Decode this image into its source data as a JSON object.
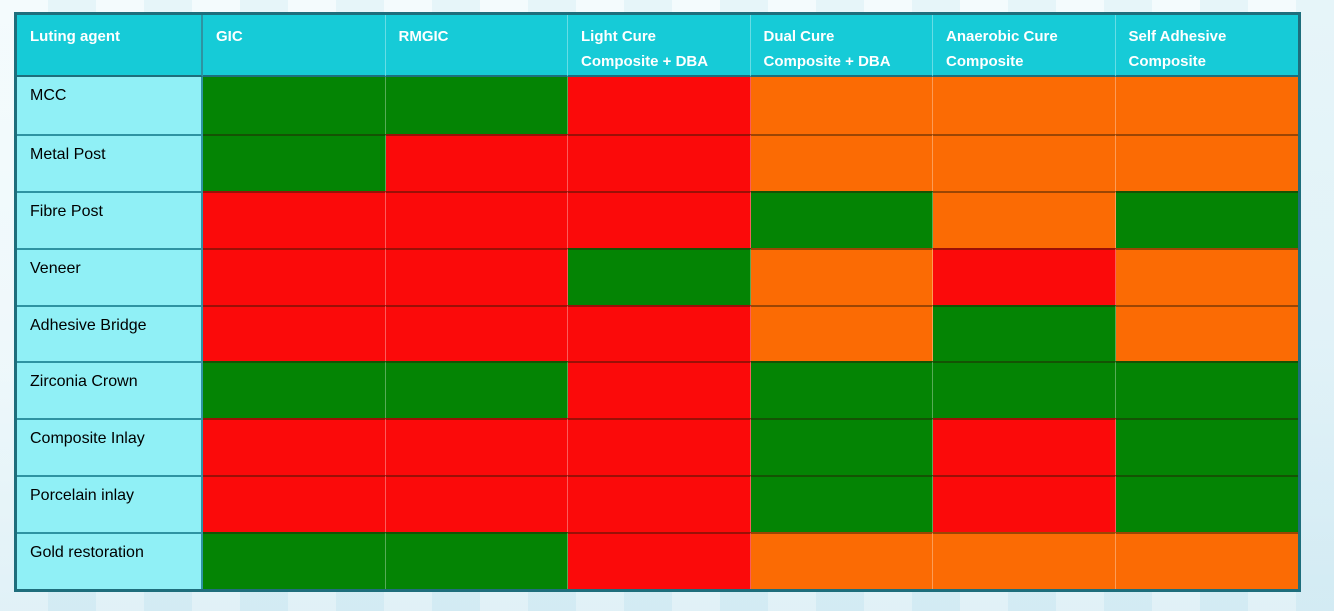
{
  "table": {
    "colors": {
      "green": "#048404",
      "red": "#fb0a0a",
      "orange": "#fb6b04",
      "header_bg": "#16cbd7",
      "label_bg": "#90f0f6",
      "outer_border": "#1e6e7c",
      "label_border": "#2e93a2",
      "header_text": "#ffffff",
      "label_text": "#000000"
    },
    "columns": [
      {
        "id": "luting-agent",
        "lines": [
          "Luting agent"
        ]
      },
      {
        "id": "gic",
        "lines": [
          "GIC"
        ]
      },
      {
        "id": "rmgic",
        "lines": [
          "RMGIC"
        ]
      },
      {
        "id": "light-cure-composite-dba",
        "lines": [
          "Light Cure",
          "Composite + DBA"
        ]
      },
      {
        "id": "dual-cure-composite-dba",
        "lines": [
          "Dual Cure",
          "Composite + DBA"
        ]
      },
      {
        "id": "anaerobic-cure-composite",
        "lines": [
          "Anaerobic Cure",
          "Composite"
        ]
      },
      {
        "id": "self-adhesive-composite",
        "lines": [
          "Self Adhesive",
          "Composite"
        ]
      }
    ],
    "rows": [
      {
        "id": "mcc",
        "label": "MCC",
        "cells": [
          "green",
          "green",
          "red",
          "orange",
          "orange",
          "orange"
        ]
      },
      {
        "id": "metal-post",
        "label": "Metal Post",
        "cells": [
          "green",
          "red",
          "red",
          "orange",
          "orange",
          "orange"
        ]
      },
      {
        "id": "fibre-post",
        "label": "Fibre Post",
        "cells": [
          "red",
          "red",
          "red",
          "green",
          "orange",
          "green"
        ]
      },
      {
        "id": "veneer",
        "label": "Veneer",
        "cells": [
          "red",
          "red",
          "green",
          "orange",
          "red",
          "orange"
        ]
      },
      {
        "id": "adhesive-bridge",
        "label": "Adhesive Bridge",
        "cells": [
          "red",
          "red",
          "red",
          "orange",
          "green",
          "orange"
        ]
      },
      {
        "id": "zirconia-crown",
        "label": "Zirconia Crown",
        "cells": [
          "green",
          "green",
          "red",
          "green",
          "green",
          "green"
        ]
      },
      {
        "id": "composite-inlay",
        "label": "Composite Inlay",
        "cells": [
          "red",
          "red",
          "red",
          "green",
          "red",
          "green"
        ]
      },
      {
        "id": "porcelain-inlay",
        "label": "Porcelain inlay",
        "cells": [
          "red",
          "red",
          "red",
          "green",
          "red",
          "green"
        ]
      },
      {
        "id": "gold-restoration",
        "label": "Gold restoration",
        "cells": [
          "green",
          "green",
          "red",
          "orange",
          "orange",
          "orange"
        ]
      }
    ]
  },
  "chart_data": {
    "type": "heatmap",
    "corner_label": "Luting agent",
    "x_categories": [
      "GIC",
      "RMGIC",
      "Light Cure Composite + DBA",
      "Dual Cure Composite + DBA",
      "Anaerobic Cure Composite",
      "Self Adhesive Composite"
    ],
    "y_categories": [
      "MCC",
      "Metal Post",
      "Fibre Post",
      "Veneer",
      "Adhesive Bridge",
      "Zirconia Crown",
      "Composite Inlay",
      "Porcelain inlay",
      "Gold restoration"
    ],
    "values": [
      [
        "green",
        "green",
        "red",
        "orange",
        "orange",
        "orange"
      ],
      [
        "green",
        "red",
        "red",
        "orange",
        "orange",
        "orange"
      ],
      [
        "red",
        "red",
        "red",
        "green",
        "orange",
        "green"
      ],
      [
        "red",
        "red",
        "green",
        "orange",
        "red",
        "orange"
      ],
      [
        "red",
        "red",
        "red",
        "orange",
        "green",
        "orange"
      ],
      [
        "green",
        "green",
        "red",
        "green",
        "green",
        "green"
      ],
      [
        "red",
        "red",
        "red",
        "green",
        "red",
        "green"
      ],
      [
        "red",
        "red",
        "red",
        "green",
        "red",
        "green"
      ],
      [
        "green",
        "green",
        "red",
        "orange",
        "orange",
        "orange"
      ]
    ],
    "value_colors": {
      "green": "#048404",
      "red": "#fb0a0a",
      "orange": "#fb6b04"
    },
    "legend_position": "none",
    "grid": true
  }
}
